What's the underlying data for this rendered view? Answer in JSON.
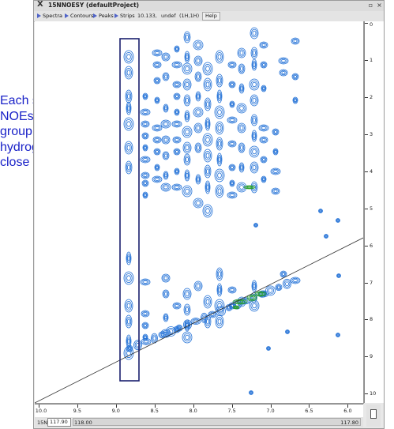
{
  "window": {
    "app_icon": "x-window-icon",
    "title": "15NNOESY (defaultProject)",
    "controls": [
      "▫",
      "×"
    ]
  },
  "menubar": {
    "menus": [
      {
        "label": "Spectra",
        "icon": "triangle-right-icon"
      },
      {
        "label": "Contours",
        "icon": "triangle-right-icon"
      },
      {
        "label": "Peaks",
        "icon": "triangle-right-icon"
      },
      {
        "label": "Strips",
        "icon": "triangle-right-icon"
      }
    ],
    "position_readout": "10.133,",
    "undef_readout": "undef",
    "axis_readout": "(1H,1H)",
    "help_label": "Help"
  },
  "annotation": {
    "lines": [
      "Each strip contains",
      "NOEs from one NH",
      "group to all other",
      "hydrogen atoms",
      "close by"
    ],
    "color": "#1a22c8"
  },
  "x_axis": {
    "ticks": [
      "10.0",
      "9.5",
      "9.0",
      "8.5",
      "8.0",
      "7.5",
      "7.0",
      "6.5",
      "6.0"
    ],
    "values": [
      10.0,
      9.5,
      9.0,
      8.5,
      8.0,
      7.5,
      7.0,
      6.5,
      6.0
    ],
    "range": [
      10.05,
      5.8
    ]
  },
  "y_axis": {
    "ticks": [
      "0",
      "1",
      "2",
      "3",
      "4",
      "5",
      "6",
      "7",
      "8",
      "9",
      "10"
    ],
    "values": [
      0,
      1,
      2,
      3,
      4,
      5,
      6,
      7,
      8,
      9,
      10
    ],
    "range": [
      -0.05,
      10.25
    ]
  },
  "statusbar": {
    "iso_label": "15N",
    "iso_value": "117.90",
    "slider_min": "118.00",
    "slider_max": "117.80"
  },
  "colors": {
    "contour_positive": "#1f6fd6",
    "contour_negative": "#2aa02a",
    "strip_box": "#1a1f6e",
    "diagonal": "#333333"
  }
}
